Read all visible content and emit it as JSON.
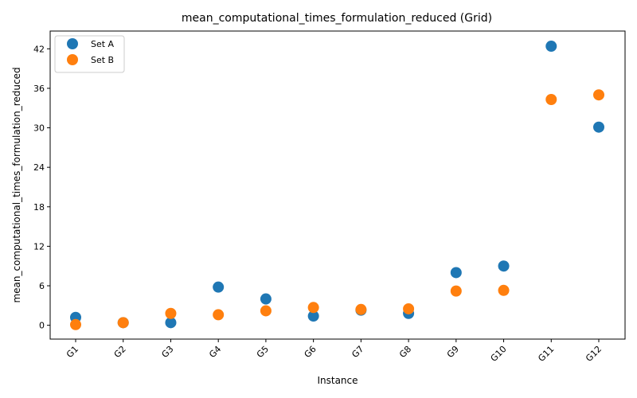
{
  "chart_data": {
    "type": "scatter",
    "title": "mean_computational_times_formulation_reduced (Grid)",
    "xlabel": "Instance",
    "ylabel": "mean_computational_times_formulation_reduced",
    "categories": [
      "G1",
      "G2",
      "G3",
      "G4",
      "G5",
      "G6",
      "G7",
      "G8",
      "G9",
      "G10",
      "G11",
      "G12"
    ],
    "yticks": [
      0,
      6,
      12,
      18,
      24,
      30,
      36,
      42
    ],
    "ylim": [
      -2.1,
      44.7
    ],
    "grid": false,
    "legend_position": "upper-left",
    "series": [
      {
        "name": "Set A",
        "color": "#1f77b4",
        "values": [
          1.2,
          0.4,
          0.4,
          5.8,
          4.0,
          1.4,
          2.3,
          1.8,
          8.0,
          9.0,
          42.4,
          30.1
        ]
      },
      {
        "name": "Set B",
        "color": "#ff7f0e",
        "values": [
          0.1,
          0.4,
          1.8,
          1.6,
          2.2,
          2.7,
          2.4,
          2.5,
          5.2,
          5.3,
          34.3,
          35.0
        ]
      }
    ]
  }
}
